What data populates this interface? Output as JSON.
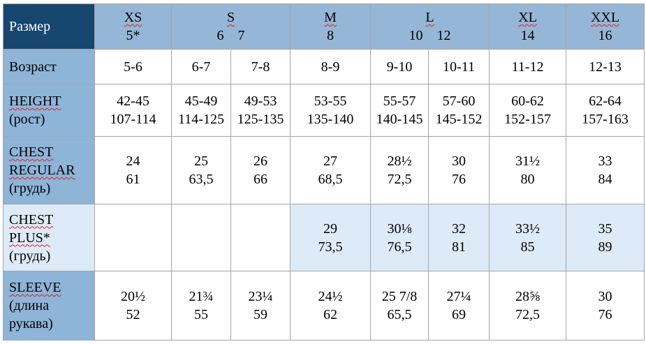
{
  "header": {
    "label": "Размер",
    "groups": [
      {
        "size": "XS",
        "numbers": "5*"
      },
      {
        "size": "S",
        "numbers": "6    7"
      },
      {
        "size": "M",
        "numbers": "8"
      },
      {
        "size": "L",
        "numbers": "10    12"
      },
      {
        "size": "XL",
        "numbers": "14"
      },
      {
        "size": "XXL",
        "numbers": "16"
      }
    ]
  },
  "rows": [
    {
      "label": [
        "Возраст"
      ],
      "cells": [
        [
          "5-6"
        ],
        [
          "6-7"
        ],
        [
          "7-8"
        ],
        [
          "8-9"
        ],
        [
          "9-10"
        ],
        [
          "10-11"
        ],
        [
          "11-12"
        ],
        [
          "12-13"
        ]
      ]
    },
    {
      "label": [
        "HEIGHT",
        "(рост)"
      ],
      "cells": [
        [
          "42-45",
          "107-114"
        ],
        [
          "45-49",
          "114-125"
        ],
        [
          "49-53",
          "125-135"
        ],
        [
          "53-55",
          "135-140"
        ],
        [
          "55-57",
          "140-145"
        ],
        [
          "57-60",
          "145-152"
        ],
        [
          "60-62",
          "152-157"
        ],
        [
          "62-64",
          "157-163"
        ]
      ]
    },
    {
      "label": [
        "CHEST",
        "REGULAR",
        "(грудь)"
      ],
      "cells": [
        [
          "24",
          "61"
        ],
        [
          "25",
          "63,5"
        ],
        [
          "26",
          "66"
        ],
        [
          "27",
          "68,5"
        ],
        [
          "28½",
          "72,5"
        ],
        [
          "30",
          "76"
        ],
        [
          "31½",
          "80"
        ],
        [
          "33",
          "84"
        ]
      ]
    },
    {
      "label": [
        "CHEST",
        "PLUS*",
        "(грудь)"
      ],
      "cells": [
        [],
        [],
        [],
        [
          "29",
          "73,5"
        ],
        [
          "30⅛",
          "76,5"
        ],
        [
          "32",
          "81"
        ],
        [
          "33½",
          "85"
        ],
        [
          "35",
          "89"
        ]
      ]
    },
    {
      "label": [
        "SLEEVE",
        "(длина",
        "рукава)"
      ],
      "cells": [
        [
          "20½",
          "52"
        ],
        [
          "21¾",
          "55"
        ],
        [
          "23¼",
          "59"
        ],
        [
          "24½",
          "62"
        ],
        [
          "25 7/8",
          "65,5"
        ],
        [
          "27¼",
          "69"
        ],
        [
          "28⅝",
          "72,5"
        ],
        [
          "30",
          "76"
        ]
      ]
    }
  ]
}
